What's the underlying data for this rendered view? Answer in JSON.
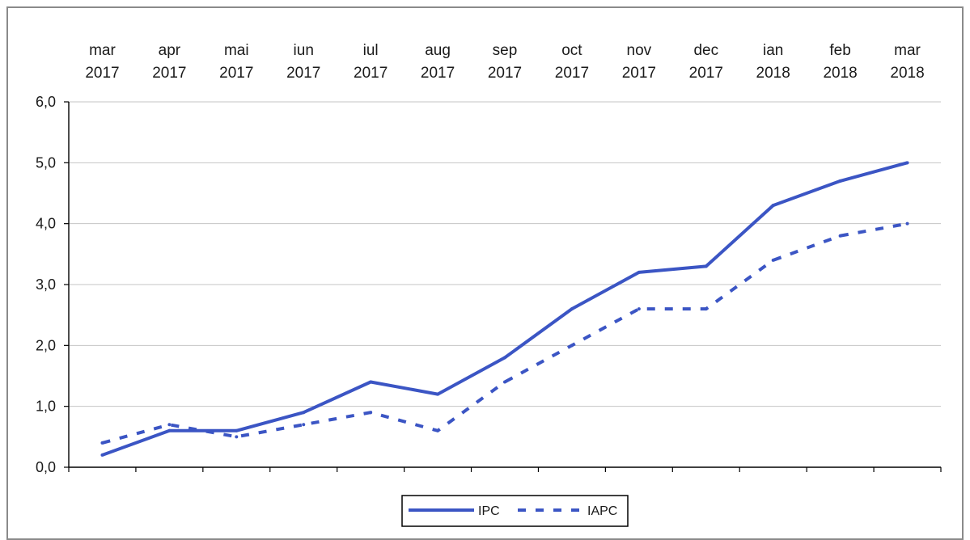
{
  "chart_data": {
    "type": "line",
    "categories": [
      [
        "mar",
        "2017"
      ],
      [
        "apr",
        "2017"
      ],
      [
        "mai",
        "2017"
      ],
      [
        "iun",
        "2017"
      ],
      [
        "iul",
        "2017"
      ],
      [
        "aug",
        "2017"
      ],
      [
        "sep",
        "2017"
      ],
      [
        "oct",
        "2017"
      ],
      [
        "nov",
        "2017"
      ],
      [
        "dec",
        "2017"
      ],
      [
        "ian",
        "2018"
      ],
      [
        "feb",
        "2018"
      ],
      [
        "mar",
        "2018"
      ]
    ],
    "series": [
      {
        "name": "IPC",
        "style": "solid",
        "color": "#3b55c4",
        "values": [
          0.2,
          0.6,
          0.6,
          0.9,
          1.4,
          1.2,
          1.8,
          2.6,
          3.2,
          3.3,
          4.3,
          4.7,
          5.0
        ]
      },
      {
        "name": "IAPC",
        "style": "dashed",
        "color": "#3b55c4",
        "values": [
          0.4,
          0.7,
          0.5,
          0.7,
          0.9,
          0.6,
          1.4,
          2.0,
          2.6,
          2.6,
          3.4,
          3.8,
          4.0
        ]
      }
    ],
    "yticks": [
      "0,0",
      "1,0",
      "2,0",
      "3,0",
      "4,0",
      "5,0",
      "6,0"
    ],
    "ylim": [
      0,
      6
    ],
    "grid": true,
    "legend_position": "bottom"
  }
}
